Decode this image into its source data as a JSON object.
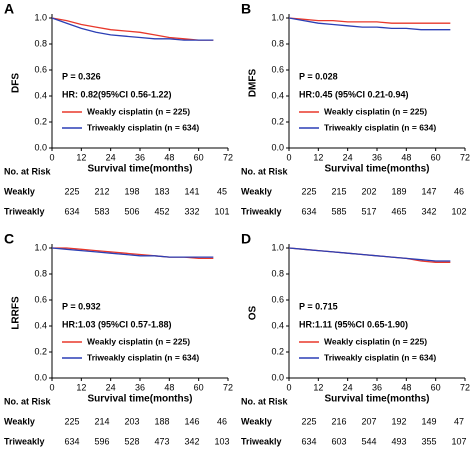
{
  "chart_data": [
    {
      "type": "line",
      "panel": "A",
      "ylabel": "DFS",
      "xlabel": "Survival time(months)",
      "p_value": "P = 0.326",
      "hr": "HR: 0.82(95%CI 0.56-1.22)",
      "x": [
        0,
        6,
        12,
        18,
        24,
        30,
        36,
        42,
        48,
        54,
        60,
        66
      ],
      "series": [
        {
          "name": "Weakly cisplatin (n = 225)",
          "color": "#e8382b",
          "values": [
            1,
            0.98,
            0.95,
            0.93,
            0.91,
            0.9,
            0.89,
            0.87,
            0.85,
            0.84,
            0.83,
            0.83
          ]
        },
        {
          "name": "Triweakly cisplatin (n = 634)",
          "color": "#2b3fb5",
          "values": [
            1,
            0.96,
            0.92,
            0.89,
            0.87,
            0.86,
            0.85,
            0.84,
            0.84,
            0.83,
            0.83,
            0.83
          ]
        }
      ],
      "xlim": [
        0,
        72
      ],
      "xticks": [
        0,
        12,
        24,
        36,
        48,
        60,
        72
      ],
      "ylim": [
        0,
        1
      ],
      "yticks": [
        {
          "value": 0,
          "label": "0.0"
        },
        0.2,
        0.4,
        0.6,
        0.8,
        {
          "value": 1,
          "label": "1.0"
        }
      ],
      "risk_table": {
        "title": "No. at Risk",
        "rows": [
          {
            "name": "Weakly",
            "values": [
              225,
              212,
              198,
              183,
              141,
              45
            ]
          },
          {
            "name": "Triweakly",
            "values": [
              634,
              583,
              506,
              452,
              332,
              101
            ]
          }
        ]
      }
    },
    {
      "type": "line",
      "panel": "B",
      "ylabel": "DMFS",
      "xlabel": "Survival time(months)",
      "p_value": "P = 0.028",
      "hr": "HR:0.45 (95%CI 0.21-0.94)",
      "x": [
        0,
        6,
        12,
        18,
        24,
        30,
        36,
        42,
        48,
        54,
        60,
        66
      ],
      "series": [
        {
          "name": "Weakly cisplatin (n = 225)",
          "color": "#e8382b",
          "values": [
            1,
            0.99,
            0.98,
            0.98,
            0.97,
            0.97,
            0.97,
            0.96,
            0.96,
            0.96,
            0.96,
            0.96
          ]
        },
        {
          "name": "Triweakly cisplatin (n = 634)",
          "color": "#2b3fb5",
          "values": [
            1,
            0.98,
            0.96,
            0.95,
            0.94,
            0.93,
            0.93,
            0.92,
            0.92,
            0.91,
            0.91,
            0.91
          ]
        }
      ],
      "xlim": [
        0,
        72
      ],
      "xticks": [
        0,
        12,
        24,
        36,
        48,
        60,
        72
      ],
      "ylim": [
        0,
        1
      ],
      "yticks": [
        {
          "value": 0,
          "label": "0.0"
        },
        0.2,
        0.4,
        0.6,
        0.8,
        {
          "value": 1,
          "label": "1.0"
        }
      ],
      "risk_table": {
        "title": "No. at Risk",
        "rows": [
          {
            "name": "Weakly",
            "values": [
              225,
              215,
              202,
              189,
              147,
              46
            ]
          },
          {
            "name": "Triweakly",
            "values": [
              634,
              585,
              517,
              465,
              342,
              102
            ]
          }
        ]
      }
    },
    {
      "type": "line",
      "panel": "C",
      "ylabel": "LRRFS",
      "xlabel": "Survival time(months)",
      "p_value": "P = 0.932",
      "hr": "HR:1.03 (95%CI 0.57-1.88)",
      "x": [
        0,
        6,
        12,
        18,
        24,
        30,
        36,
        42,
        48,
        54,
        60,
        66
      ],
      "series": [
        {
          "name": "Weakly cisplatin (n = 225)",
          "color": "#e8382b",
          "values": [
            1,
            1,
            0.99,
            0.98,
            0.97,
            0.96,
            0.95,
            0.94,
            0.93,
            0.93,
            0.92,
            0.92
          ]
        },
        {
          "name": "Triweakly cisplatin (n = 634)",
          "color": "#2b3fb5",
          "values": [
            1,
            0.99,
            0.98,
            0.97,
            0.96,
            0.95,
            0.94,
            0.94,
            0.93,
            0.93,
            0.93,
            0.93
          ]
        }
      ],
      "xlim": [
        0,
        72
      ],
      "xticks": [
        0,
        12,
        24,
        36,
        48,
        60,
        72
      ],
      "ylim": [
        0,
        1
      ],
      "yticks": [
        {
          "value": 0,
          "label": "0.0"
        },
        0.2,
        0.4,
        0.6,
        0.8,
        {
          "value": 1,
          "label": "1.0"
        }
      ],
      "risk_table": {
        "title": "No. at Risk",
        "rows": [
          {
            "name": "Weakly",
            "values": [
              225,
              214,
              203,
              188,
              146,
              46
            ]
          },
          {
            "name": "Triweakly",
            "values": [
              634,
              596,
              528,
              473,
              342,
              103
            ]
          }
        ]
      }
    },
    {
      "type": "line",
      "panel": "D",
      "ylabel": "OS",
      "xlabel": "Survival time(months)",
      "p_value": "P = 0.715",
      "hr": "HR:1.11 (95%CI 0.65-1.90)",
      "x": [
        0,
        6,
        12,
        18,
        24,
        30,
        36,
        42,
        48,
        54,
        60,
        66
      ],
      "series": [
        {
          "name": "Weakly cisplatin (n = 225)",
          "color": "#e8382b",
          "values": [
            1,
            0.99,
            0.98,
            0.97,
            0.96,
            0.95,
            0.94,
            0.93,
            0.92,
            0.9,
            0.89,
            0.89
          ]
        },
        {
          "name": "Triweakly cisplatin (n = 634)",
          "color": "#2b3fb5",
          "values": [
            1,
            0.99,
            0.98,
            0.97,
            0.96,
            0.95,
            0.94,
            0.93,
            0.92,
            0.91,
            0.9,
            0.9
          ]
        }
      ],
      "xlim": [
        0,
        72
      ],
      "xticks": [
        0,
        12,
        24,
        36,
        48,
        60,
        72
      ],
      "ylim": [
        0,
        1
      ],
      "yticks": [
        {
          "value": 0,
          "label": "0.0"
        },
        0.2,
        0.4,
        0.6,
        0.8,
        {
          "value": 1,
          "label": "1.0"
        }
      ],
      "risk_table": {
        "title": "No. at Risk",
        "rows": [
          {
            "name": "Weakly",
            "values": [
              225,
              216,
              207,
              192,
              149,
              47
            ]
          },
          {
            "name": "Triweakly",
            "values": [
              634,
              603,
              544,
              493,
              355,
              107
            ]
          }
        ]
      }
    }
  ]
}
